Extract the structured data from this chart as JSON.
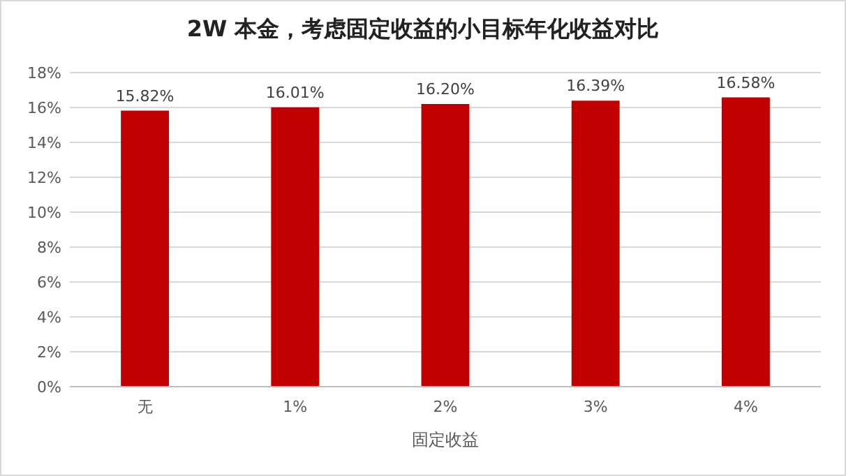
{
  "chart_data": {
    "type": "bar",
    "title": "2W 本金，考虑固定收益的小目标年化收益对比",
    "xlabel": "固定收益",
    "categories": [
      "无",
      "1%",
      "2%",
      "3%",
      "4%"
    ],
    "values": [
      15.82,
      16.01,
      16.2,
      16.39,
      16.58
    ],
    "value_labels": [
      "15.82%",
      "16.01%",
      "16.20%",
      "16.39%",
      "16.58%"
    ],
    "color": "#c00000",
    "ylim": [
      0,
      18
    ],
    "yticks": [
      {
        "value": 0,
        "label": "0%"
      },
      {
        "value": 2,
        "label": "2%"
      },
      {
        "value": 4,
        "label": "4%"
      },
      {
        "value": 6,
        "label": "6%"
      },
      {
        "value": 8,
        "label": "8%"
      },
      {
        "value": 10,
        "label": "10%"
      },
      {
        "value": 12,
        "label": "12%"
      },
      {
        "value": 14,
        "label": "14%"
      },
      {
        "value": 16,
        "label": "16%"
      },
      {
        "value": 18,
        "label": "18%"
      }
    ],
    "grid": "y"
  }
}
